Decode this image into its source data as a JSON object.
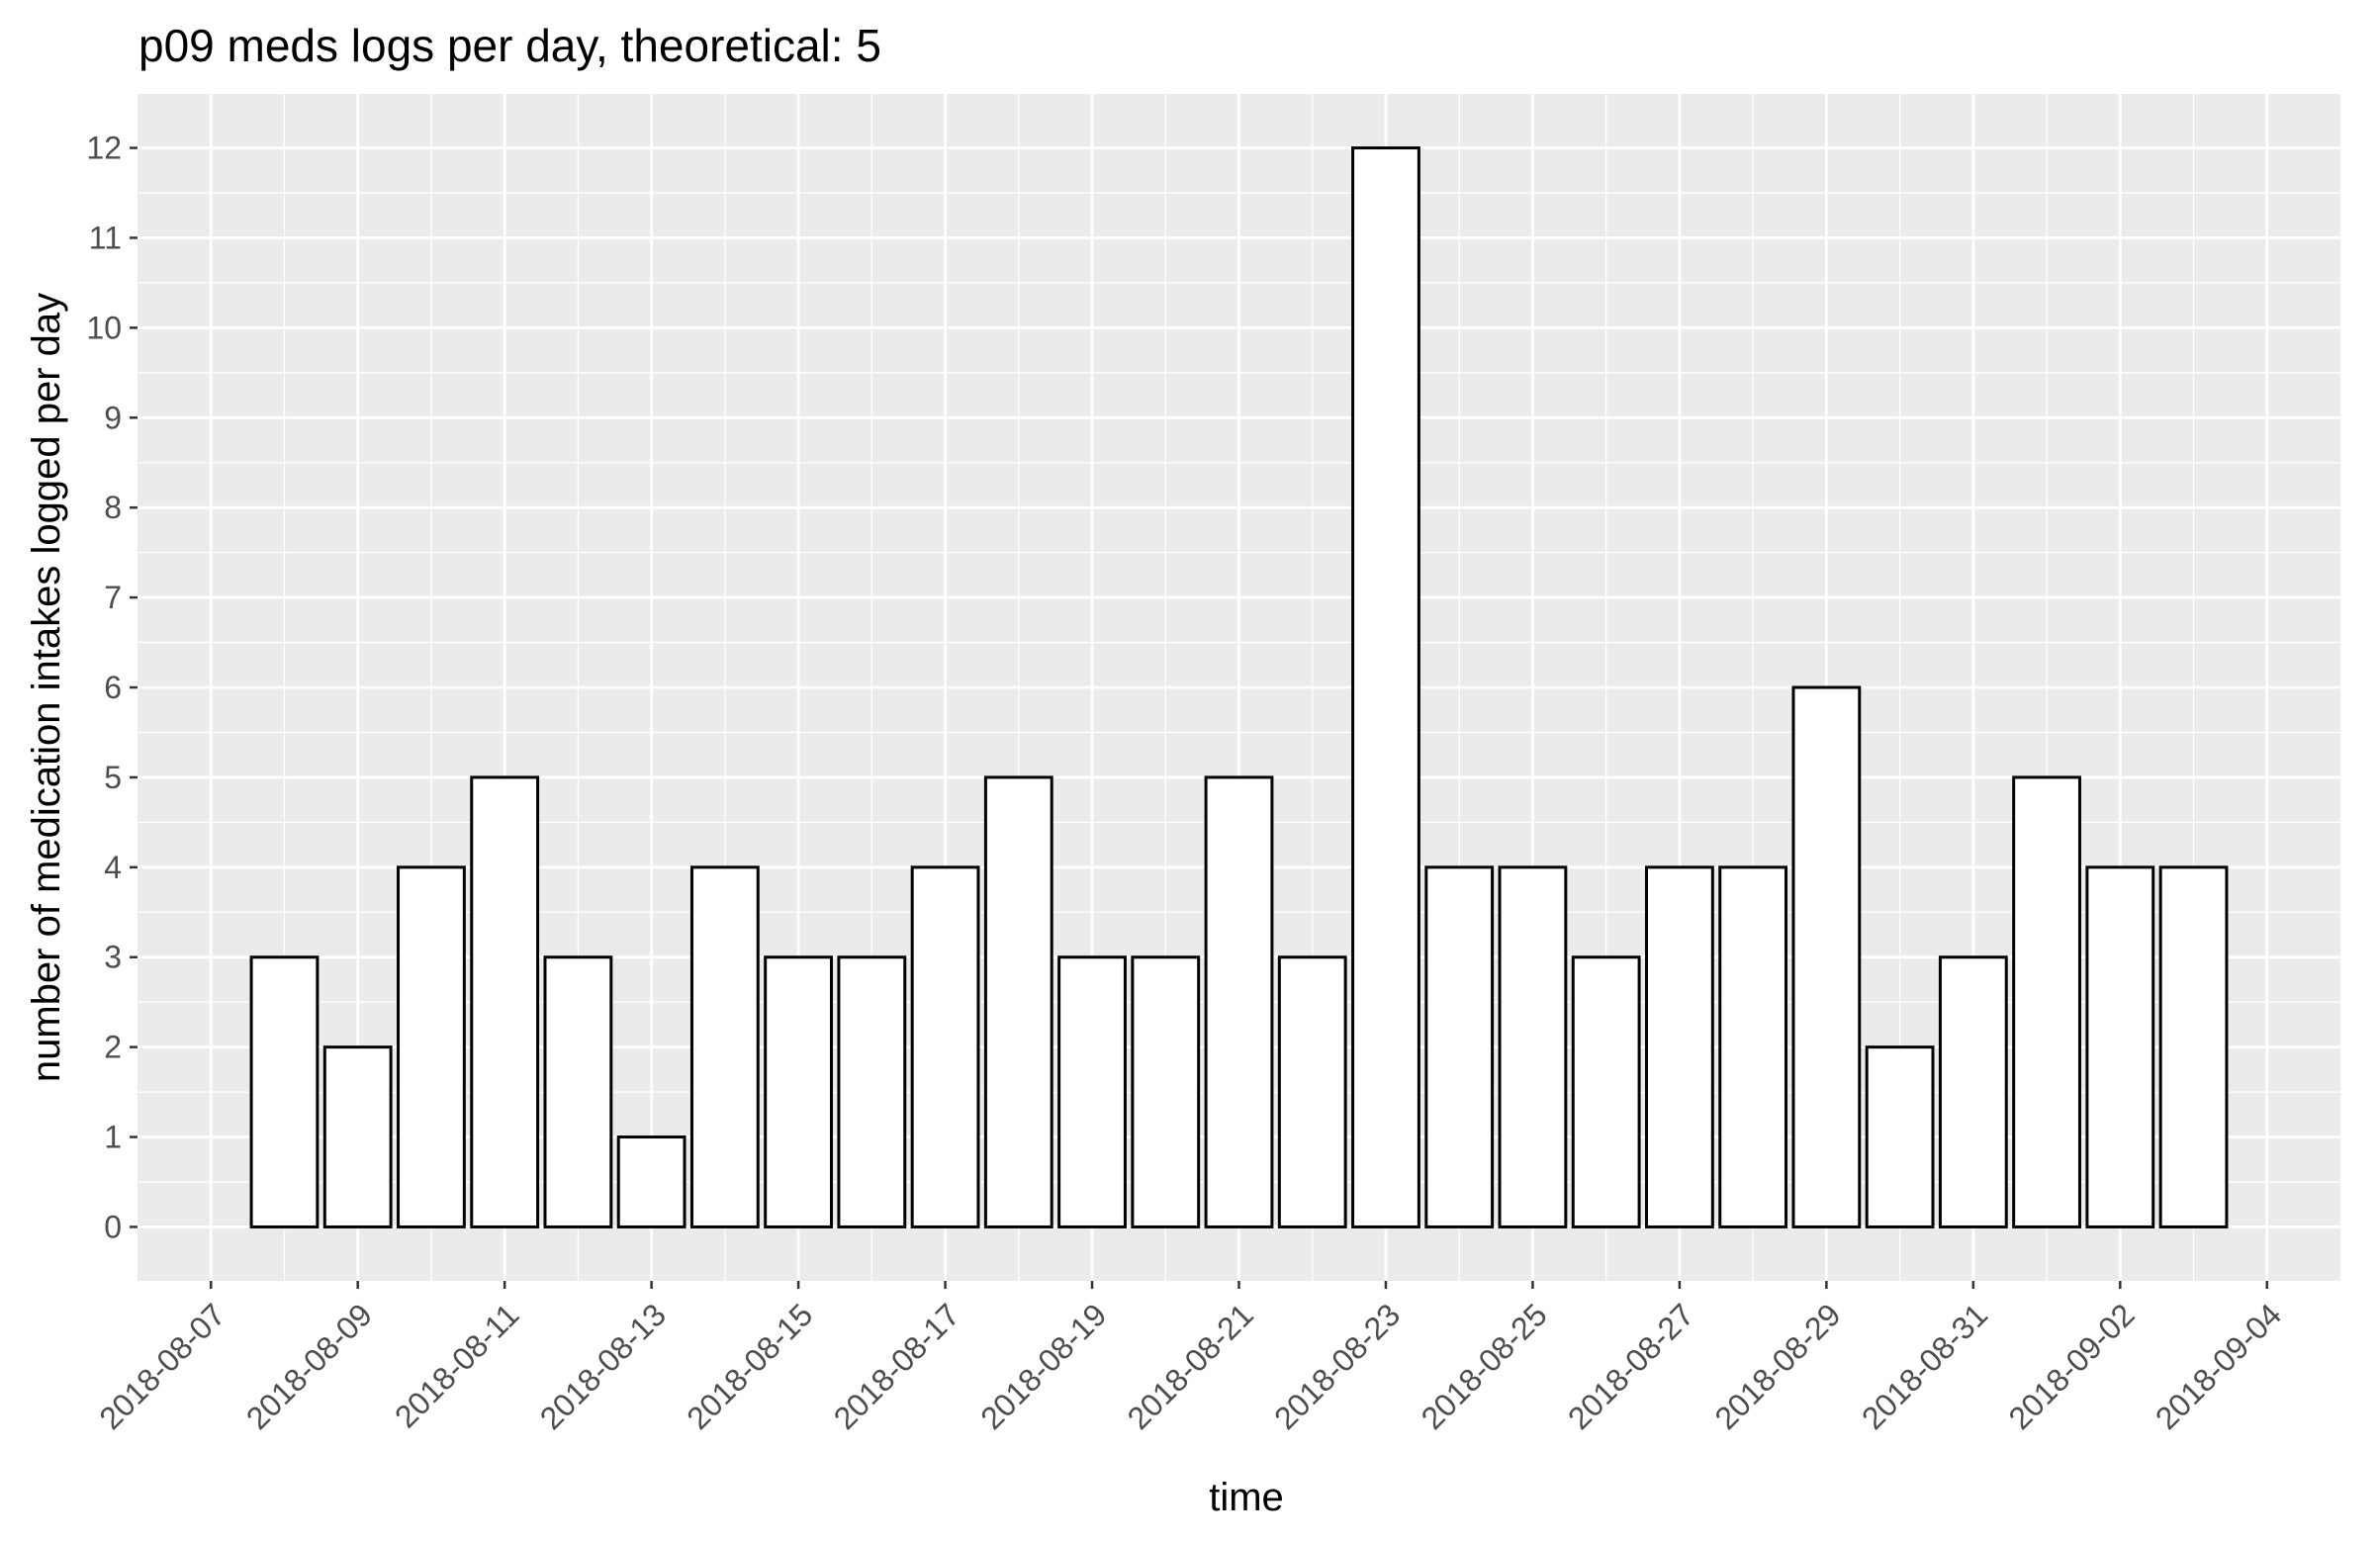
{
  "chart_data": {
    "type": "bar",
    "title": "p09 meds logs per day, theoretical: 5",
    "xlabel": "time",
    "ylabel": "number of medication intakes logged per day",
    "x": [
      "2018-08-08",
      "2018-08-09",
      "2018-08-10",
      "2018-08-11",
      "2018-08-12",
      "2018-08-13",
      "2018-08-14",
      "2018-08-15",
      "2018-08-16",
      "2018-08-17",
      "2018-08-18",
      "2018-08-19",
      "2018-08-20",
      "2018-08-21",
      "2018-08-22",
      "2018-08-23",
      "2018-08-24",
      "2018-08-25",
      "2018-08-26",
      "2018-08-27",
      "2018-08-28",
      "2018-08-29",
      "2018-08-30",
      "2018-08-31",
      "2018-09-01",
      "2018-09-02",
      "2018-09-03"
    ],
    "values": [
      3,
      2,
      4,
      5,
      3,
      1,
      4,
      3,
      3,
      4,
      5,
      3,
      3,
      5,
      3,
      12,
      4,
      4,
      3,
      4,
      4,
      6,
      2,
      3,
      5,
      4,
      4
    ],
    "xlim": [
      "2018-08-06",
      "2018-09-05"
    ],
    "ylim": [
      -0.6,
      12.6
    ],
    "x_ticks": [
      "2018-08-07",
      "2018-08-09",
      "2018-08-11",
      "2018-08-13",
      "2018-08-15",
      "2018-08-17",
      "2018-08-19",
      "2018-08-21",
      "2018-08-23",
      "2018-08-25",
      "2018-08-27",
      "2018-08-29",
      "2018-08-31",
      "2018-09-02",
      "2018-09-04"
    ],
    "y_ticks": [
      "0",
      "1",
      "2",
      "3",
      "4",
      "5",
      "6",
      "7",
      "8",
      "9",
      "10",
      "11",
      "12"
    ],
    "grid": true,
    "panel_color": "#ebebeb",
    "bar_fill": "#ffffff",
    "bar_outline": "#000000"
  }
}
